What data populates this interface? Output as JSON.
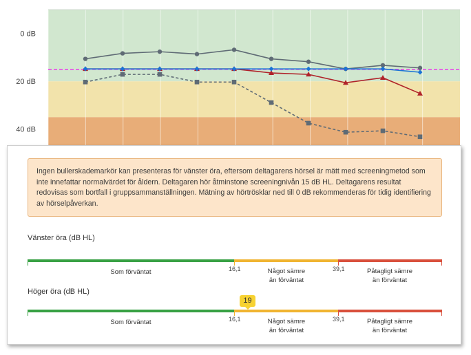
{
  "chart_data": {
    "type": "line",
    "ylabel": "dB",
    "ylim": [
      -10,
      47
    ],
    "y_ticks": [
      "0 dB",
      "20 dB",
      "40 dB"
    ],
    "y_tick_values": [
      0,
      20,
      40
    ],
    "bands": [
      {
        "name": "normal",
        "from": -10,
        "to": 20,
        "color": "#d1e7cf"
      },
      {
        "name": "mild",
        "from": 20,
        "to": 35,
        "color": "#f2e3ab"
      },
      {
        "name": "severe",
        "from": 35,
        "to": 47,
        "color": "#e8ad78"
      }
    ],
    "screening_level": {
      "value": 15,
      "color": "#e64ae6"
    },
    "x": [
      1,
      2,
      3,
      4,
      5,
      6,
      7,
      8,
      9,
      10
    ],
    "series": [
      {
        "name": "gray-circles",
        "color": "#5f6b75",
        "dash": false,
        "marker": "circle",
        "values": [
          10.6,
          8.3,
          7.6,
          8.6,
          6.8,
          10.6,
          11.8,
          14.8,
          13.3,
          14.4
        ]
      },
      {
        "name": "gray-squares-dashed",
        "color": "#5f6b75",
        "dash": true,
        "marker": "square",
        "values": [
          20.3,
          17.1,
          17.1,
          20.3,
          20.3,
          28.9,
          37.5,
          41.3,
          40.7,
          43.2
        ]
      },
      {
        "name": "red-triangles",
        "color": "#b0232a",
        "dash": false,
        "marker": "triangle",
        "values": [
          14.8,
          14.8,
          14.8,
          14.8,
          14.8,
          16.5,
          17.1,
          20.6,
          18.5,
          25.1
        ]
      },
      {
        "name": "blue-diamonds",
        "color": "#1a73d6",
        "dash": false,
        "marker": "diamond",
        "values": [
          14.8,
          14.8,
          14.8,
          14.8,
          14.8,
          14.8,
          14.8,
          14.8,
          14.8,
          16.2
        ]
      }
    ]
  },
  "notice": {
    "text": "Ingen bullerskademarkör kan presenteras för vänster öra, eftersom deltagarens hörsel är mätt med screeningmetod som inte innefattar normalvärdet för åldern. Deltagaren hör åtminstone screeningnivån 15 dB HL. Deltagarens resultat redovisas som bortfall i gruppsammanställningen. Mätning av hörtrösklar ned till 0 dB rekommenderas för tidig identifiering av hörselpåverkan."
  },
  "scales": {
    "threshold_low": "16,1",
    "threshold_high": "39,1",
    "label_normal": "Som förväntat",
    "label_mild_line1": "Något sämre",
    "label_mild_line2": "än förväntat",
    "label_severe_line1": "Påtagligt sämre",
    "label_severe_line2": "än förväntat",
    "left": {
      "label": "Vänster öra (dB HL)"
    },
    "right": {
      "label": "Höger öra (dB HL)",
      "value_text": "19",
      "value": 19
    }
  }
}
